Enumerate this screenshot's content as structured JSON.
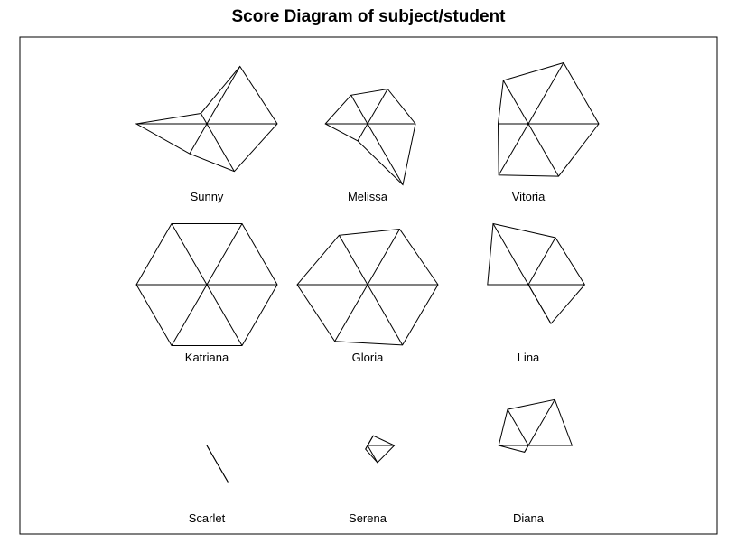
{
  "chart_data": {
    "type": "star",
    "title": "Score Diagram of subject/student",
    "variables": 6,
    "value_scale": [
      0,
      1
    ],
    "layout": {
      "rows": 3,
      "cols": 3
    },
    "subjects": [
      {
        "name": "Sunny",
        "values": [
          1.0,
          0.94,
          0.17,
          1.0,
          0.49,
          0.78
        ]
      },
      {
        "name": "Melissa",
        "values": [
          0.68,
          0.57,
          0.47,
          0.6,
          0.28,
          1.0
        ]
      },
      {
        "name": "Vitoria",
        "values": [
          1.0,
          1.0,
          0.71,
          0.43,
          0.84,
          0.86
        ]
      },
      {
        "name": "Katriana",
        "values": [
          1.0,
          1.0,
          1.0,
          1.0,
          1.0,
          1.0
        ]
      },
      {
        "name": "Gloria",
        "values": [
          1.0,
          0.91,
          0.81,
          1.0,
          0.93,
          0.99
        ]
      },
      {
        "name": "Lina",
        "values": [
          0.8,
          0.77,
          1.0,
          0.58,
          0.0,
          0.64
        ]
      },
      {
        "name": "Scarlet",
        "values": [
          0.0,
          0.0,
          0.0,
          0.0,
          0.0,
          0.6
        ]
      },
      {
        "name": "Serena",
        "values": [
          0.38,
          0.16,
          0.0,
          0.0,
          0.06,
          0.28
        ]
      },
      {
        "name": "Diana",
        "values": [
          0.62,
          0.75,
          0.59,
          0.42,
          0.11,
          0.0
        ]
      }
    ]
  }
}
